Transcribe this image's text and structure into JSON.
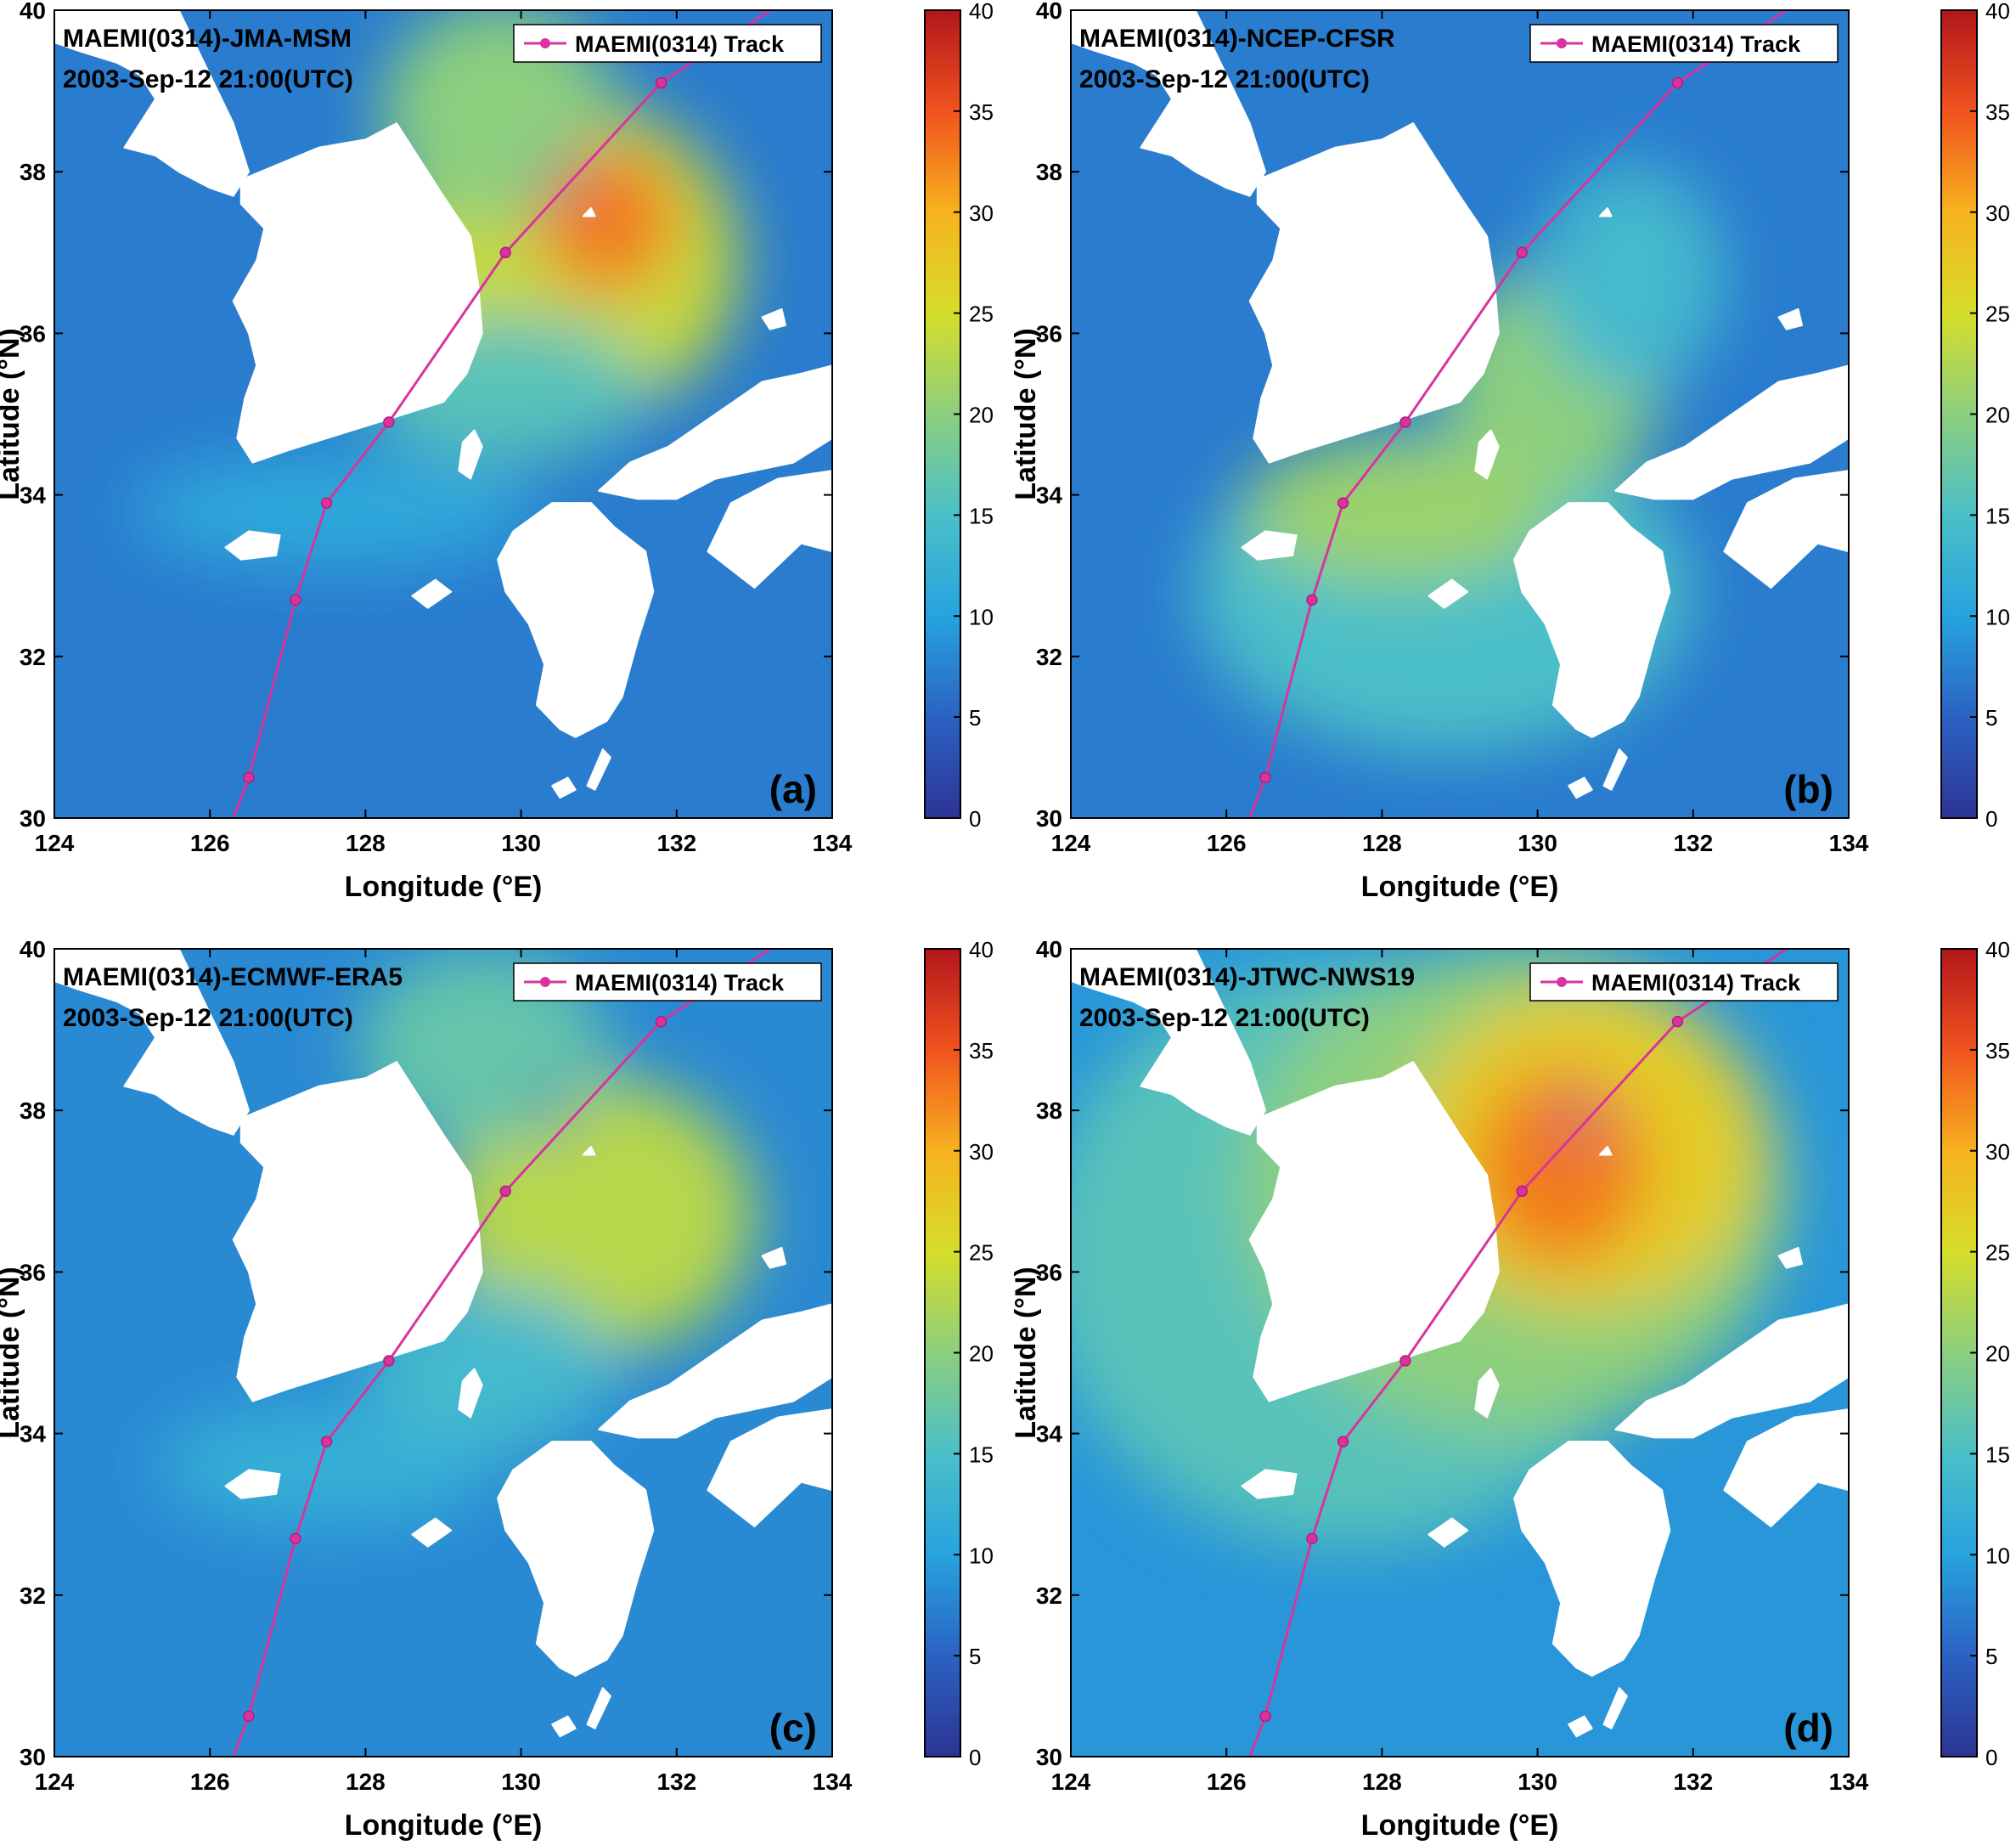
{
  "figure": {
    "xlabel": "Longitude (°E)",
    "ylabel": "Latitude (°N)",
    "legend_label": "MAEMI(0314) Track",
    "timestamp": "2003-Sep-12 21:00(UTC)"
  },
  "chart_data": [
    {
      "type": "heatmap",
      "panel_label": "(a)",
      "title": "MAEMI(0314)-JMA-MSM",
      "subtitle": "2003-Sep-12 21:00(UTC)",
      "xlabel": "Longitude (°E)",
      "ylabel": "Latitude (°N)",
      "xlim": [
        124,
        134
      ],
      "ylim": [
        30,
        40
      ],
      "xticks": [
        124,
        126,
        128,
        130,
        132,
        134
      ],
      "yticks": [
        30,
        32,
        34,
        36,
        38,
        40
      ],
      "colorbar": {
        "min": 0,
        "max": 40,
        "ticks": [
          0,
          5,
          10,
          15,
          20,
          25,
          30,
          35,
          40
        ]
      },
      "legend": {
        "entries": [
          "MAEMI(0314) Track"
        ],
        "position": "top-right"
      },
      "background_value": 7,
      "features": [
        {
          "lon": 131.1,
          "lat": 37.4,
          "value": 33,
          "rx": 0.9,
          "ry": 0.9
        },
        {
          "lon": 130.6,
          "lat": 36.9,
          "value": 24,
          "rx": 2.2,
          "ry": 2.0
        },
        {
          "lon": 129.7,
          "lat": 38.7,
          "value": 20,
          "rx": 1.5,
          "ry": 1.4
        },
        {
          "lon": 129.8,
          "lat": 35.3,
          "value": 16,
          "rx": 1.8,
          "ry": 0.9
        },
        {
          "lon": 127.6,
          "lat": 33.8,
          "value": 11,
          "rx": 2.6,
          "ry": 0.7
        },
        {
          "lon": 130.5,
          "lat": 37.9,
          "value": 6,
          "rx": 0.2,
          "ry": 0.2
        }
      ]
    },
    {
      "type": "heatmap",
      "panel_label": "(b)",
      "title": "MAEMI(0314)-NCEP-CFSR",
      "subtitle": "2003-Sep-12 21:00(UTC)",
      "xlabel": "Longitude (°E)",
      "ylabel": "Latitude (°N)",
      "xlim": [
        124,
        134
      ],
      "ylim": [
        30,
        40
      ],
      "xticks": [
        124,
        126,
        128,
        130,
        132,
        134
      ],
      "yticks": [
        30,
        32,
        34,
        36,
        38,
        40
      ],
      "colorbar": {
        "min": 0,
        "max": 40,
        "ticks": [
          0,
          5,
          10,
          15,
          20,
          25,
          30,
          35,
          40
        ]
      },
      "legend": {
        "entries": [
          "MAEMI(0314) Track"
        ],
        "position": "top-right"
      },
      "background_value": 7,
      "features": [
        {
          "lon": 128.2,
          "lat": 33.8,
          "value": 21,
          "rx": 2.0,
          "ry": 0.9
        },
        {
          "lon": 130.2,
          "lat": 35.4,
          "value": 20,
          "rx": 1.4,
          "ry": 1.4
        },
        {
          "lon": 128.8,
          "lat": 32.8,
          "value": 15,
          "rx": 3.2,
          "ry": 2.0
        },
        {
          "lon": 131.2,
          "lat": 36.7,
          "value": 14,
          "rx": 1.2,
          "ry": 1.4
        }
      ]
    },
    {
      "type": "heatmap",
      "panel_label": "(c)",
      "title": "MAEMI(0314)-ECMWF-ERA5",
      "subtitle": "2003-Sep-12 21:00(UTC)",
      "xlabel": "Longitude (°E)",
      "ylabel": "Latitude (°N)",
      "xlim": [
        124,
        134
      ],
      "ylim": [
        30,
        40
      ],
      "xticks": [
        124,
        126,
        128,
        130,
        132,
        134
      ],
      "yticks": [
        30,
        32,
        34,
        36,
        38,
        40
      ],
      "colorbar": {
        "min": 0,
        "max": 40,
        "ticks": [
          0,
          5,
          10,
          15,
          20,
          25,
          30,
          35,
          40
        ]
      },
      "legend": {
        "entries": [
          "MAEMI(0314) Track"
        ],
        "position": "top-right"
      },
      "background_value": 8,
      "features": [
        {
          "lon": 131.0,
          "lat": 36.7,
          "value": 23,
          "rx": 2.0,
          "ry": 1.7
        },
        {
          "lon": 129.5,
          "lat": 38.8,
          "value": 17,
          "rx": 1.6,
          "ry": 1.2
        },
        {
          "lon": 129.6,
          "lat": 34.8,
          "value": 14,
          "rx": 1.6,
          "ry": 1.0
        },
        {
          "lon": 127.5,
          "lat": 33.6,
          "value": 12,
          "rx": 2.2,
          "ry": 0.8
        },
        {
          "lon": 130.4,
          "lat": 38.0,
          "value": 4,
          "rx": 0.25,
          "ry": 0.25
        }
      ]
    },
    {
      "type": "heatmap",
      "panel_label": "(d)",
      "title": "MAEMI(0314)-JTWC-NWS19",
      "subtitle": "2003-Sep-12 21:00(UTC)",
      "xlabel": "Longitude (°E)",
      "ylabel": "Latitude (°N)",
      "xlim": [
        124,
        134
      ],
      "ylim": [
        30,
        40
      ],
      "xticks": [
        124,
        126,
        128,
        130,
        132,
        134
      ],
      "yticks": [
        30,
        32,
        34,
        36,
        38,
        40
      ],
      "colorbar": {
        "min": 0,
        "max": 40,
        "ticks": [
          0,
          5,
          10,
          15,
          20,
          25,
          30,
          35,
          40
        ]
      },
      "legend": {
        "entries": [
          "MAEMI(0314) Track"
        ],
        "position": "top-right"
      },
      "background_value": 9,
      "features": [
        {
          "lon": 130.3,
          "lat": 37.3,
          "value": 33,
          "rx": 1.1,
          "ry": 1.2
        },
        {
          "lon": 130.6,
          "lat": 37.5,
          "value": 27,
          "rx": 2.3,
          "ry": 2.0
        },
        {
          "lon": 129.7,
          "lat": 37.0,
          "value": 20,
          "rx": 3.5,
          "ry": 3.0
        },
        {
          "lon": 127.6,
          "lat": 36.2,
          "value": 16,
          "rx": 4.0,
          "ry": 3.6
        },
        {
          "lon": 130.55,
          "lat": 37.9,
          "value": 5,
          "rx": 0.2,
          "ry": 0.2
        }
      ]
    }
  ],
  "track": {
    "name": "MAEMI(0314) Track",
    "color": "#d9339e",
    "points": [
      {
        "lon": 126.3,
        "lat": 30.0
      },
      {
        "lon": 126.5,
        "lat": 30.5
      },
      {
        "lon": 127.1,
        "lat": 32.7
      },
      {
        "lon": 127.5,
        "lat": 33.9
      },
      {
        "lon": 128.3,
        "lat": 34.9
      },
      {
        "lon": 129.8,
        "lat": 37.0
      },
      {
        "lon": 131.8,
        "lat": 39.1
      },
      {
        "lon": 133.2,
        "lat": 40.0
      }
    ],
    "markers": [
      {
        "lon": 126.5,
        "lat": 30.5
      },
      {
        "lon": 127.1,
        "lat": 32.7
      },
      {
        "lon": 127.5,
        "lat": 33.9
      },
      {
        "lon": 128.3,
        "lat": 34.9
      },
      {
        "lon": 129.8,
        "lat": 37.0
      },
      {
        "lon": 131.8,
        "lat": 39.1
      }
    ]
  },
  "land": {
    "korea": [
      [
        126.4,
        37.9
      ],
      [
        126.9,
        38.1
      ],
      [
        127.4,
        38.3
      ],
      [
        128.0,
        38.4
      ],
      [
        128.4,
        38.6
      ],
      [
        128.6,
        38.3
      ],
      [
        129.0,
        37.7
      ],
      [
        129.35,
        37.2
      ],
      [
        129.45,
        36.6
      ],
      [
        129.5,
        36.0
      ],
      [
        129.3,
        35.5
      ],
      [
        129.0,
        35.15
      ],
      [
        128.5,
        35.0
      ],
      [
        128.0,
        34.85
      ],
      [
        127.5,
        34.7
      ],
      [
        127.0,
        34.55
      ],
      [
        126.55,
        34.4
      ],
      [
        126.35,
        34.7
      ],
      [
        126.45,
        35.2
      ],
      [
        126.6,
        35.6
      ],
      [
        126.5,
        36.0
      ],
      [
        126.3,
        36.4
      ],
      [
        126.6,
        36.9
      ],
      [
        126.7,
        37.3
      ],
      [
        126.4,
        37.6
      ]
    ],
    "china": [
      [
        124.0,
        39.6
      ],
      [
        124.3,
        39.5
      ],
      [
        124.8,
        39.35
      ],
      [
        125.1,
        39.2
      ],
      [
        125.3,
        38.9
      ],
      [
        125.1,
        38.6
      ],
      [
        124.9,
        38.3
      ],
      [
        125.3,
        38.2
      ],
      [
        125.6,
        38.0
      ],
      [
        126.0,
        37.8
      ],
      [
        126.3,
        37.7
      ],
      [
        126.5,
        38.0
      ],
      [
        126.3,
        38.6
      ],
      [
        126.0,
        39.2
      ],
      [
        125.6,
        40.0
      ],
      [
        124.0,
        40.0
      ]
    ],
    "honshu": [
      [
        131.0,
        34.05
      ],
      [
        131.4,
        34.4
      ],
      [
        131.9,
        34.6
      ],
      [
        132.5,
        35.0
      ],
      [
        133.1,
        35.4
      ],
      [
        133.6,
        35.5
      ],
      [
        134.0,
        35.6
      ],
      [
        134.0,
        34.7
      ],
      [
        133.5,
        34.4
      ],
      [
        133.0,
        34.3
      ],
      [
        132.5,
        34.2
      ],
      [
        132.0,
        33.95
      ],
      [
        131.5,
        33.95
      ]
    ],
    "kyushu": [
      [
        129.9,
        33.55
      ],
      [
        130.4,
        33.9
      ],
      [
        130.9,
        33.9
      ],
      [
        131.2,
        33.6
      ],
      [
        131.6,
        33.3
      ],
      [
        131.7,
        32.8
      ],
      [
        131.5,
        32.2
      ],
      [
        131.3,
        31.5
      ],
      [
        131.1,
        31.2
      ],
      [
        130.7,
        31.0
      ],
      [
        130.5,
        31.1
      ],
      [
        130.2,
        31.4
      ],
      [
        130.3,
        31.9
      ],
      [
        130.1,
        32.4
      ],
      [
        129.8,
        32.8
      ],
      [
        129.7,
        33.2
      ]
    ],
    "shikoku": [
      [
        132.4,
        33.3
      ],
      [
        132.7,
        33.9
      ],
      [
        133.3,
        34.2
      ],
      [
        134.0,
        34.3
      ],
      [
        134.0,
        33.3
      ],
      [
        133.6,
        33.4
      ],
      [
        133.0,
        32.85
      ]
    ],
    "jeju": [
      [
        126.2,
        33.35
      ],
      [
        126.5,
        33.55
      ],
      [
        126.9,
        33.5
      ],
      [
        126.85,
        33.25
      ],
      [
        126.4,
        33.2
      ]
    ],
    "tsushima": [
      [
        129.25,
        34.65
      ],
      [
        129.4,
        34.8
      ],
      [
        129.5,
        34.6
      ],
      [
        129.35,
        34.2
      ],
      [
        129.2,
        34.3
      ]
    ],
    "goto": [
      [
        128.6,
        32.75
      ],
      [
        128.9,
        32.95
      ],
      [
        129.1,
        32.8
      ],
      [
        128.8,
        32.6
      ]
    ],
    "tanegashima": [
      [
        130.85,
        30.4
      ],
      [
        131.05,
        30.85
      ],
      [
        131.15,
        30.75
      ],
      [
        130.95,
        30.35
      ]
    ],
    "yakushima": [
      [
        130.4,
        30.4
      ],
      [
        130.6,
        30.5
      ],
      [
        130.7,
        30.35
      ],
      [
        130.5,
        30.25
      ]
    ],
    "oki": [
      [
        133.1,
        36.2
      ],
      [
        133.35,
        36.3
      ],
      [
        133.4,
        36.1
      ],
      [
        133.2,
        36.05
      ]
    ],
    "ulleung": [
      [
        130.8,
        37.45
      ],
      [
        130.9,
        37.55
      ],
      [
        130.95,
        37.45
      ]
    ]
  },
  "colors": {
    "colormap": [
      "#2c3494",
      "#2b62c2",
      "#27a3df",
      "#4bbfc8",
      "#8ccf7e",
      "#d6dd2a",
      "#f7b21f",
      "#f0531e",
      "#b2161b"
    ],
    "land": "#ffffff",
    "track": "#d9339e"
  }
}
